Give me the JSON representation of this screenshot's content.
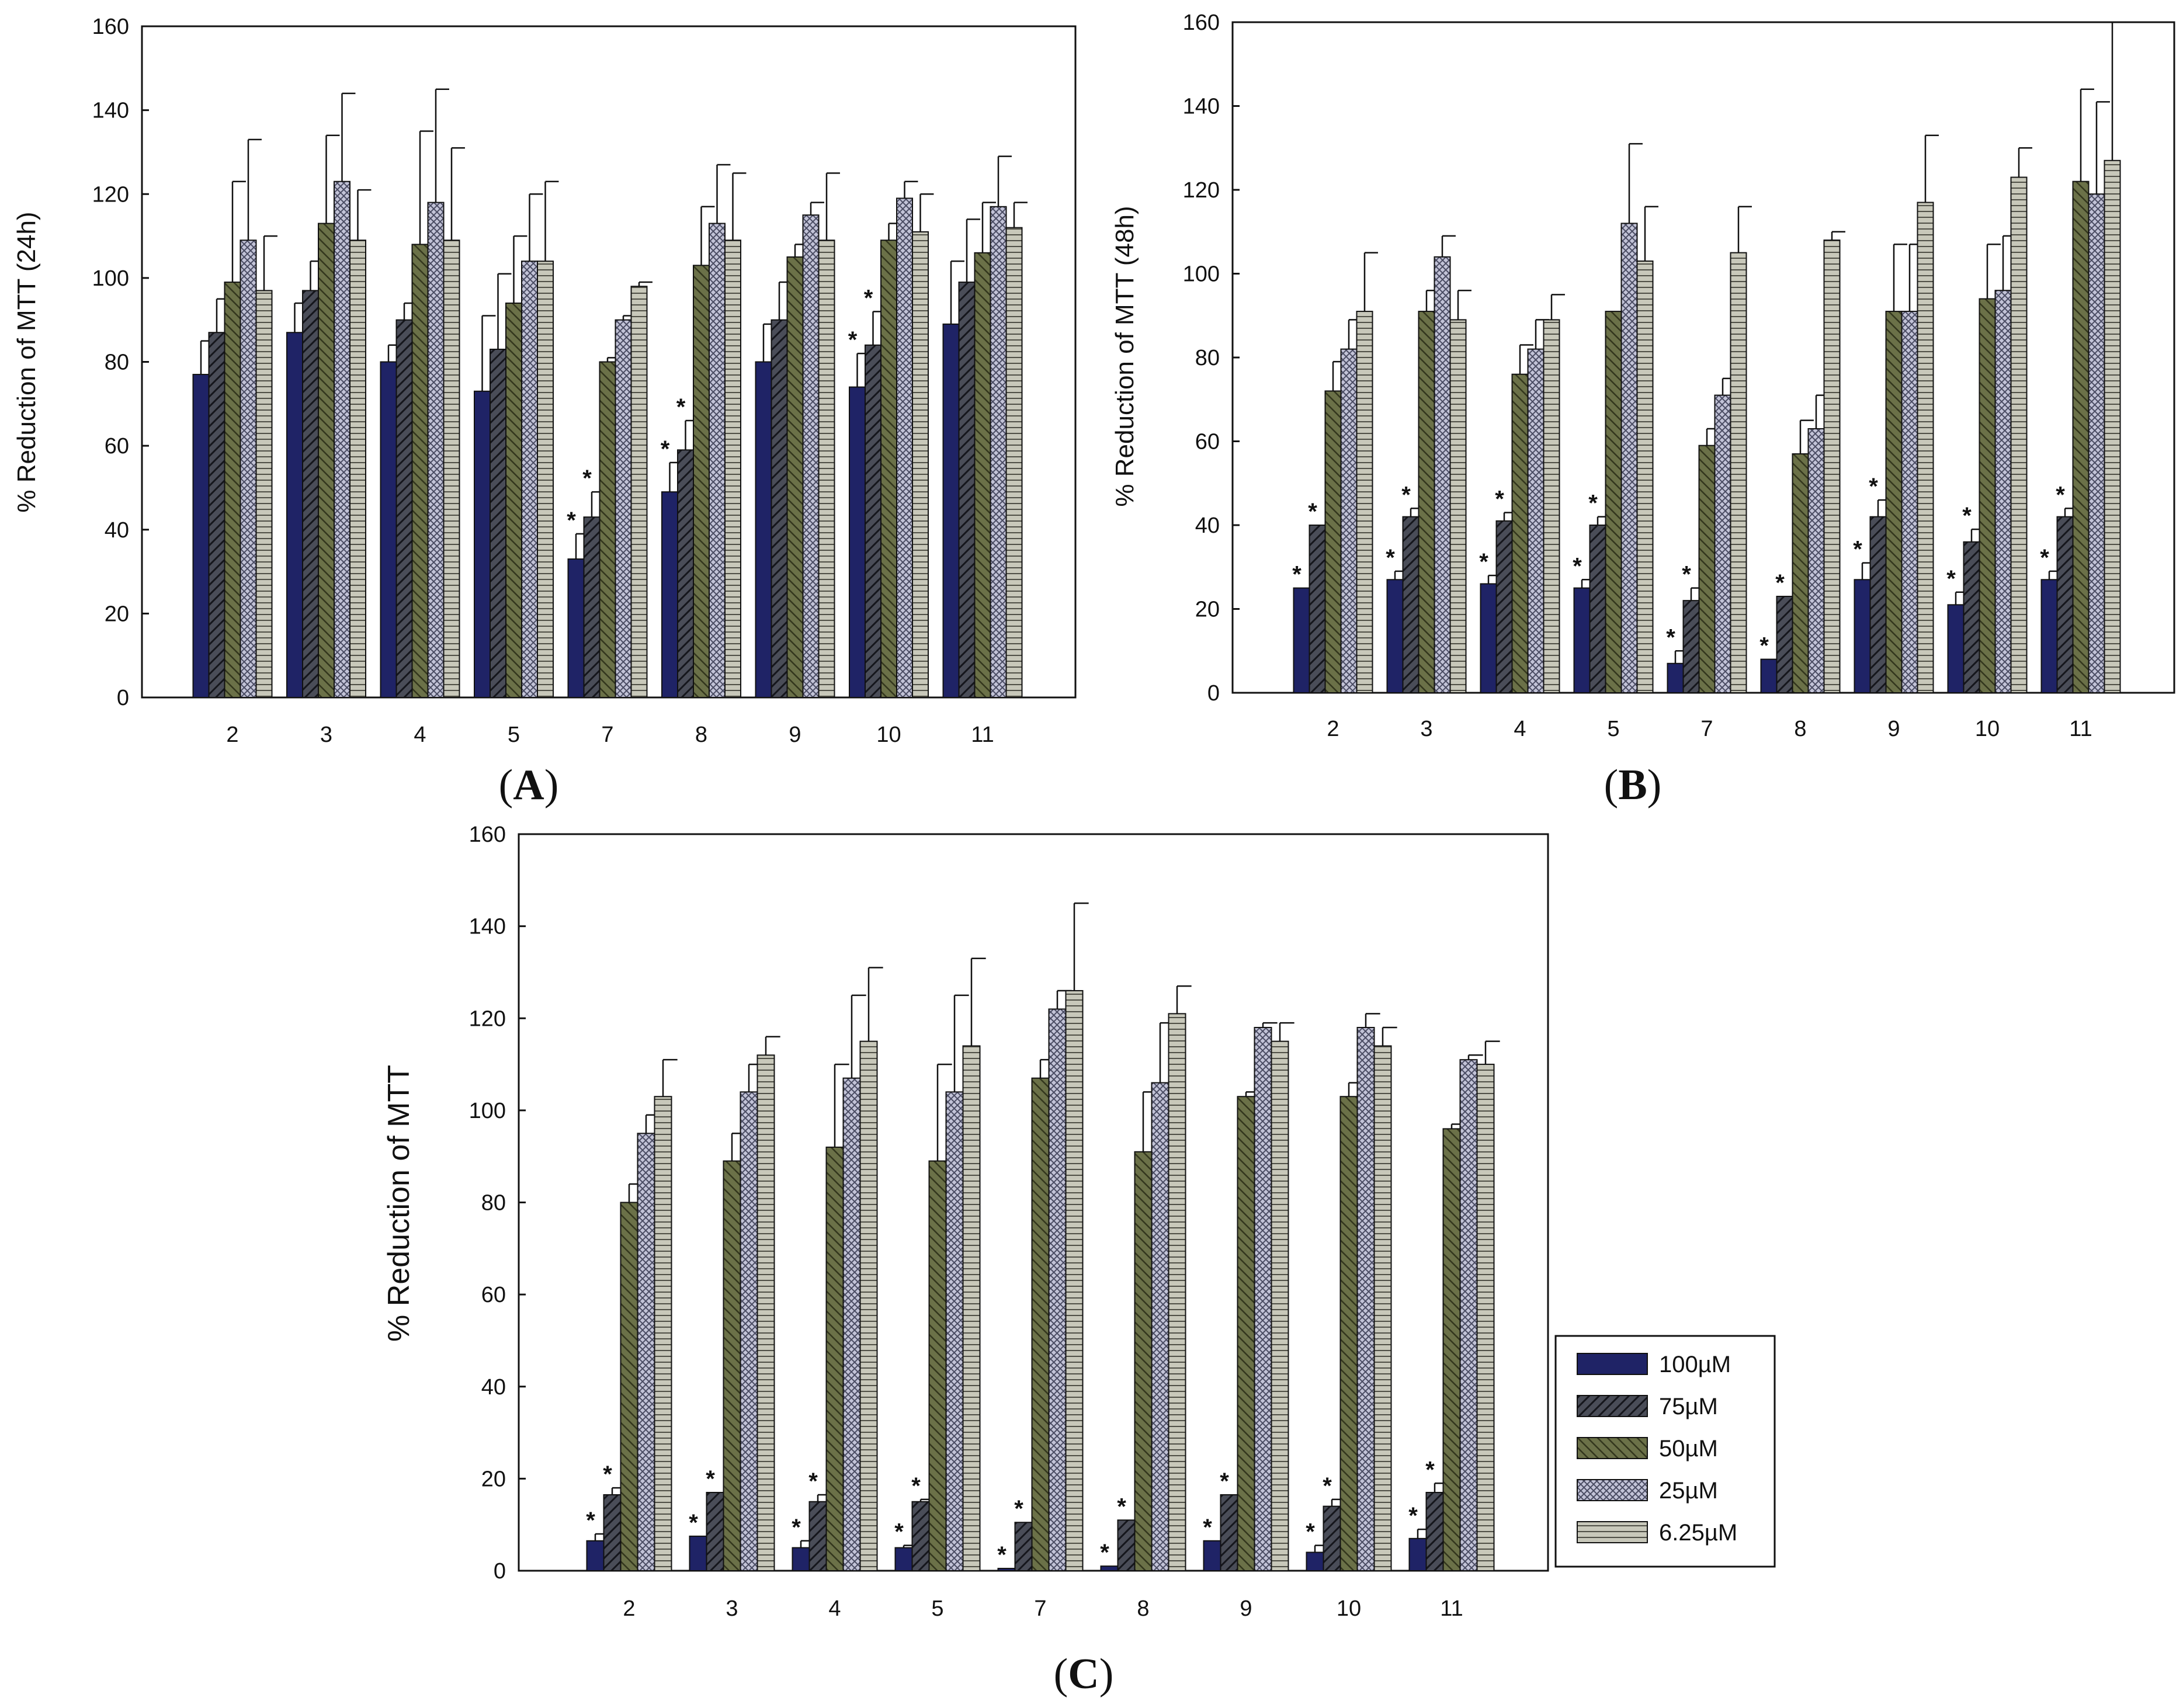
{
  "panels": [
    {
      "id": "A",
      "letter": "A",
      "ylabel": "% Reduction of MTT (24h)",
      "ylim": [
        0,
        160
      ],
      "yticks": [
        0,
        20,
        40,
        60,
        80,
        100,
        120,
        140,
        160
      ]
    },
    {
      "id": "B",
      "letter": "B",
      "ylabel": "% Reduction of MTT (48h)",
      "ylim": [
        0,
        160
      ],
      "yticks": [
        0,
        20,
        40,
        60,
        80,
        100,
        120,
        140,
        160
      ]
    },
    {
      "id": "C",
      "letter": "C",
      "ylabel": "% Reduction of MTT",
      "ylim": [
        0,
        160
      ],
      "yticks": [
        0,
        20,
        40,
        60,
        80,
        100,
        120,
        140,
        160
      ]
    }
  ],
  "legend": [
    "100µM",
    "75µM",
    "50µM",
    "25µM",
    "6.25µM"
  ],
  "colors": {
    "s100": "#1f2366",
    "s75": "#3b3e4a",
    "s50": "#5e6440",
    "s25": "#a4a6bf",
    "s625": "#b7b7a8",
    "stroke": "#111111"
  },
  "chart_data": [
    {
      "type": "bar",
      "panel": "A",
      "ylabel": "% Reduction of MTT (24h)",
      "categories": [
        "2",
        "3",
        "4",
        "5",
        "7",
        "8",
        "9",
        "10",
        "11"
      ],
      "series": [
        {
          "name": "100µM",
          "values": [
            77,
            87,
            80,
            73,
            33,
            49,
            80,
            74,
            89
          ],
          "errors": [
            8,
            7,
            4,
            18,
            6,
            7,
            9,
            8,
            15
          ],
          "significant": [
            false,
            false,
            false,
            false,
            true,
            true,
            false,
            true,
            false
          ]
        },
        {
          "name": "75µM",
          "values": [
            87,
            97,
            90,
            83,
            43,
            59,
            90,
            84,
            99
          ],
          "errors": [
            8,
            7,
            4,
            18,
            6,
            7,
            9,
            8,
            15
          ],
          "significant": [
            false,
            false,
            false,
            false,
            true,
            true,
            false,
            true,
            false
          ]
        },
        {
          "name": "50µM",
          "values": [
            99,
            113,
            108,
            94,
            80,
            103,
            105,
            109,
            106
          ],
          "errors": [
            24,
            21,
            27,
            16,
            1,
            14,
            3,
            4,
            12
          ],
          "significant": [
            false,
            false,
            false,
            false,
            false,
            false,
            false,
            false,
            false
          ]
        },
        {
          "name": "25µM",
          "values": [
            109,
            123,
            118,
            104,
            90,
            113,
            115,
            119,
            117
          ],
          "errors": [
            24,
            21,
            27,
            16,
            1,
            14,
            3,
            4,
            12
          ],
          "significant": [
            false,
            false,
            false,
            false,
            false,
            false,
            false,
            false,
            false
          ]
        },
        {
          "name": "6.25µM",
          "values": [
            97,
            109,
            109,
            104,
            98,
            109,
            109,
            111,
            112
          ],
          "errors": [
            13,
            12,
            22,
            19,
            1,
            16,
            16,
            9,
            6
          ],
          "significant": [
            false,
            false,
            false,
            false,
            false,
            false,
            false,
            false,
            false
          ]
        }
      ]
    },
    {
      "type": "bar",
      "panel": "B",
      "ylabel": "% Reduction of MTT (48h)",
      "categories": [
        "2",
        "3",
        "4",
        "5",
        "7",
        "8",
        "9",
        "10",
        "11"
      ],
      "series": [
        {
          "name": "100µM",
          "values": [
            25,
            27,
            26,
            25,
            7,
            8,
            27,
            21,
            27
          ],
          "errors": [
            0,
            2,
            2,
            2,
            3,
            0,
            4,
            3,
            2
          ],
          "significant": [
            true,
            true,
            true,
            true,
            true,
            true,
            true,
            true,
            true
          ]
        },
        {
          "name": "75µM",
          "values": [
            40,
            42,
            41,
            40,
            22,
            23,
            42,
            36,
            42
          ],
          "errors": [
            0,
            2,
            2,
            2,
            3,
            0,
            4,
            3,
            2
          ],
          "significant": [
            true,
            true,
            true,
            true,
            true,
            true,
            true,
            true,
            true
          ]
        },
        {
          "name": "50µM",
          "values": [
            72,
            91,
            76,
            91,
            59,
            57,
            91,
            94,
            122
          ],
          "errors": [
            7,
            5,
            7,
            0,
            4,
            8,
            16,
            13,
            22
          ],
          "significant": [
            false,
            false,
            false,
            false,
            false,
            false,
            false,
            false,
            false
          ]
        },
        {
          "name": "25µM",
          "values": [
            82,
            104,
            82,
            112,
            71,
            63,
            91,
            96,
            119
          ],
          "errors": [
            7,
            5,
            7,
            19,
            4,
            8,
            16,
            13,
            22
          ],
          "significant": [
            false,
            false,
            false,
            false,
            false,
            false,
            false,
            false,
            false
          ]
        },
        {
          "name": "6.25µM",
          "values": [
            91,
            89,
            89,
            103,
            105,
            108,
            117,
            123,
            127
          ],
          "errors": [
            14,
            7,
            6,
            13,
            11,
            2,
            16,
            7,
            33
          ],
          "significant": [
            false,
            false,
            false,
            false,
            false,
            false,
            false,
            false,
            false
          ]
        }
      ]
    },
    {
      "type": "bar",
      "panel": "C",
      "ylabel": "% Reduction of MTT",
      "categories": [
        "2",
        "3",
        "4",
        "5",
        "7",
        "8",
        "9",
        "10",
        "11"
      ],
      "series": [
        {
          "name": "100µM",
          "values": [
            6.5,
            7.5,
            5,
            5,
            0.5,
            1,
            6.5,
            4,
            7
          ],
          "errors": [
            1.5,
            0,
            1.5,
            0.5,
            0,
            0,
            0,
            1.5,
            2
          ],
          "significant": [
            true,
            true,
            true,
            true,
            true,
            true,
            true,
            true,
            true
          ]
        },
        {
          "name": "75µM",
          "values": [
            16.5,
            17,
            15,
            15,
            10.5,
            11,
            16.5,
            14,
            17
          ],
          "errors": [
            1.5,
            0,
            1.5,
            0.5,
            0,
            0,
            0,
            1.5,
            2
          ],
          "significant": [
            true,
            true,
            true,
            true,
            true,
            true,
            true,
            true,
            true
          ]
        },
        {
          "name": "50µM",
          "values": [
            80,
            89,
            92,
            89,
            107,
            91,
            103,
            103,
            96
          ],
          "errors": [
            4,
            6,
            18,
            21,
            4,
            13,
            1,
            3,
            1
          ],
          "significant": [
            false,
            false,
            false,
            false,
            false,
            false,
            false,
            false,
            false
          ]
        },
        {
          "name": "25µM",
          "values": [
            95,
            104,
            107,
            104,
            122,
            106,
            118,
            118,
            111
          ],
          "errors": [
            4,
            6,
            18,
            21,
            4,
            13,
            1,
            3,
            1
          ],
          "significant": [
            false,
            false,
            false,
            false,
            false,
            false,
            false,
            false,
            false
          ]
        },
        {
          "name": "6.25µM",
          "values": [
            103,
            112,
            115,
            114,
            126,
            121,
            115,
            114,
            110
          ],
          "errors": [
            8,
            4,
            16,
            19,
            19,
            6,
            4,
            4,
            5
          ],
          "significant": [
            false,
            false,
            false,
            false,
            false,
            false,
            false,
            false,
            false
          ]
        }
      ]
    }
  ]
}
